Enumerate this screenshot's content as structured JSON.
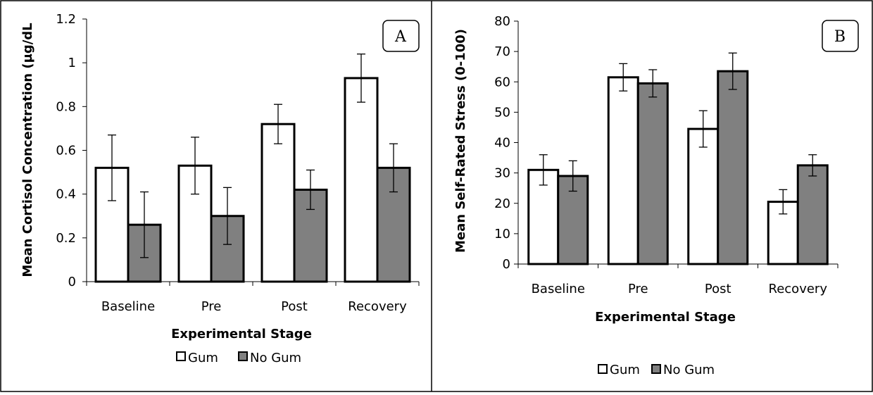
{
  "figure": {
    "legend": {
      "gum_label": "Gum",
      "nogum_label": "No Gum"
    },
    "colors": {
      "gum": "#ffffff",
      "nogum": "#808080",
      "stroke": "#000000"
    }
  },
  "chart_data": [
    {
      "type": "bar",
      "panel_label": "A",
      "categories": [
        "Baseline",
        "Pre",
        "Post",
        "Recovery"
      ],
      "series": [
        {
          "name": "Gum",
          "values": [
            0.52,
            0.53,
            0.72,
            0.93
          ],
          "errors": [
            0.15,
            0.13,
            0.09,
            0.11
          ]
        },
        {
          "name": "No Gum",
          "values": [
            0.26,
            0.3,
            0.42,
            0.52
          ],
          "errors": [
            0.15,
            0.13,
            0.09,
            0.11
          ]
        }
      ],
      "title": "",
      "xlabel": "Experimental Stage",
      "ylabel": "Mean Cortisol Concentration (µg/dL",
      "ylim": [
        0,
        1.2
      ],
      "yticks": [
        "0",
        "0.2",
        "0.4",
        "0.6",
        "0.8",
        "1",
        "1.2"
      ],
      "grid": false,
      "legend_position": "bottom"
    },
    {
      "type": "bar",
      "panel_label": "B",
      "categories": [
        "Baseline",
        "Pre",
        "Post",
        "Recovery"
      ],
      "series": [
        {
          "name": "Gum",
          "values": [
            31,
            61.5,
            44.5,
            20.5
          ],
          "errors": [
            5,
            4.5,
            6,
            4
          ]
        },
        {
          "name": "No Gum",
          "values": [
            29,
            59.5,
            63.5,
            32.5
          ],
          "errors": [
            5,
            4.5,
            6,
            3.5
          ]
        }
      ],
      "title": "",
      "xlabel": "Experimental Stage",
      "ylabel": "Mean Self-Rated Stress (0-100)",
      "ylim": [
        0,
        80
      ],
      "yticks": [
        "0",
        "10",
        "20",
        "30",
        "40",
        "50",
        "60",
        "70",
        "80"
      ],
      "grid": false,
      "legend_position": "bottom"
    }
  ]
}
